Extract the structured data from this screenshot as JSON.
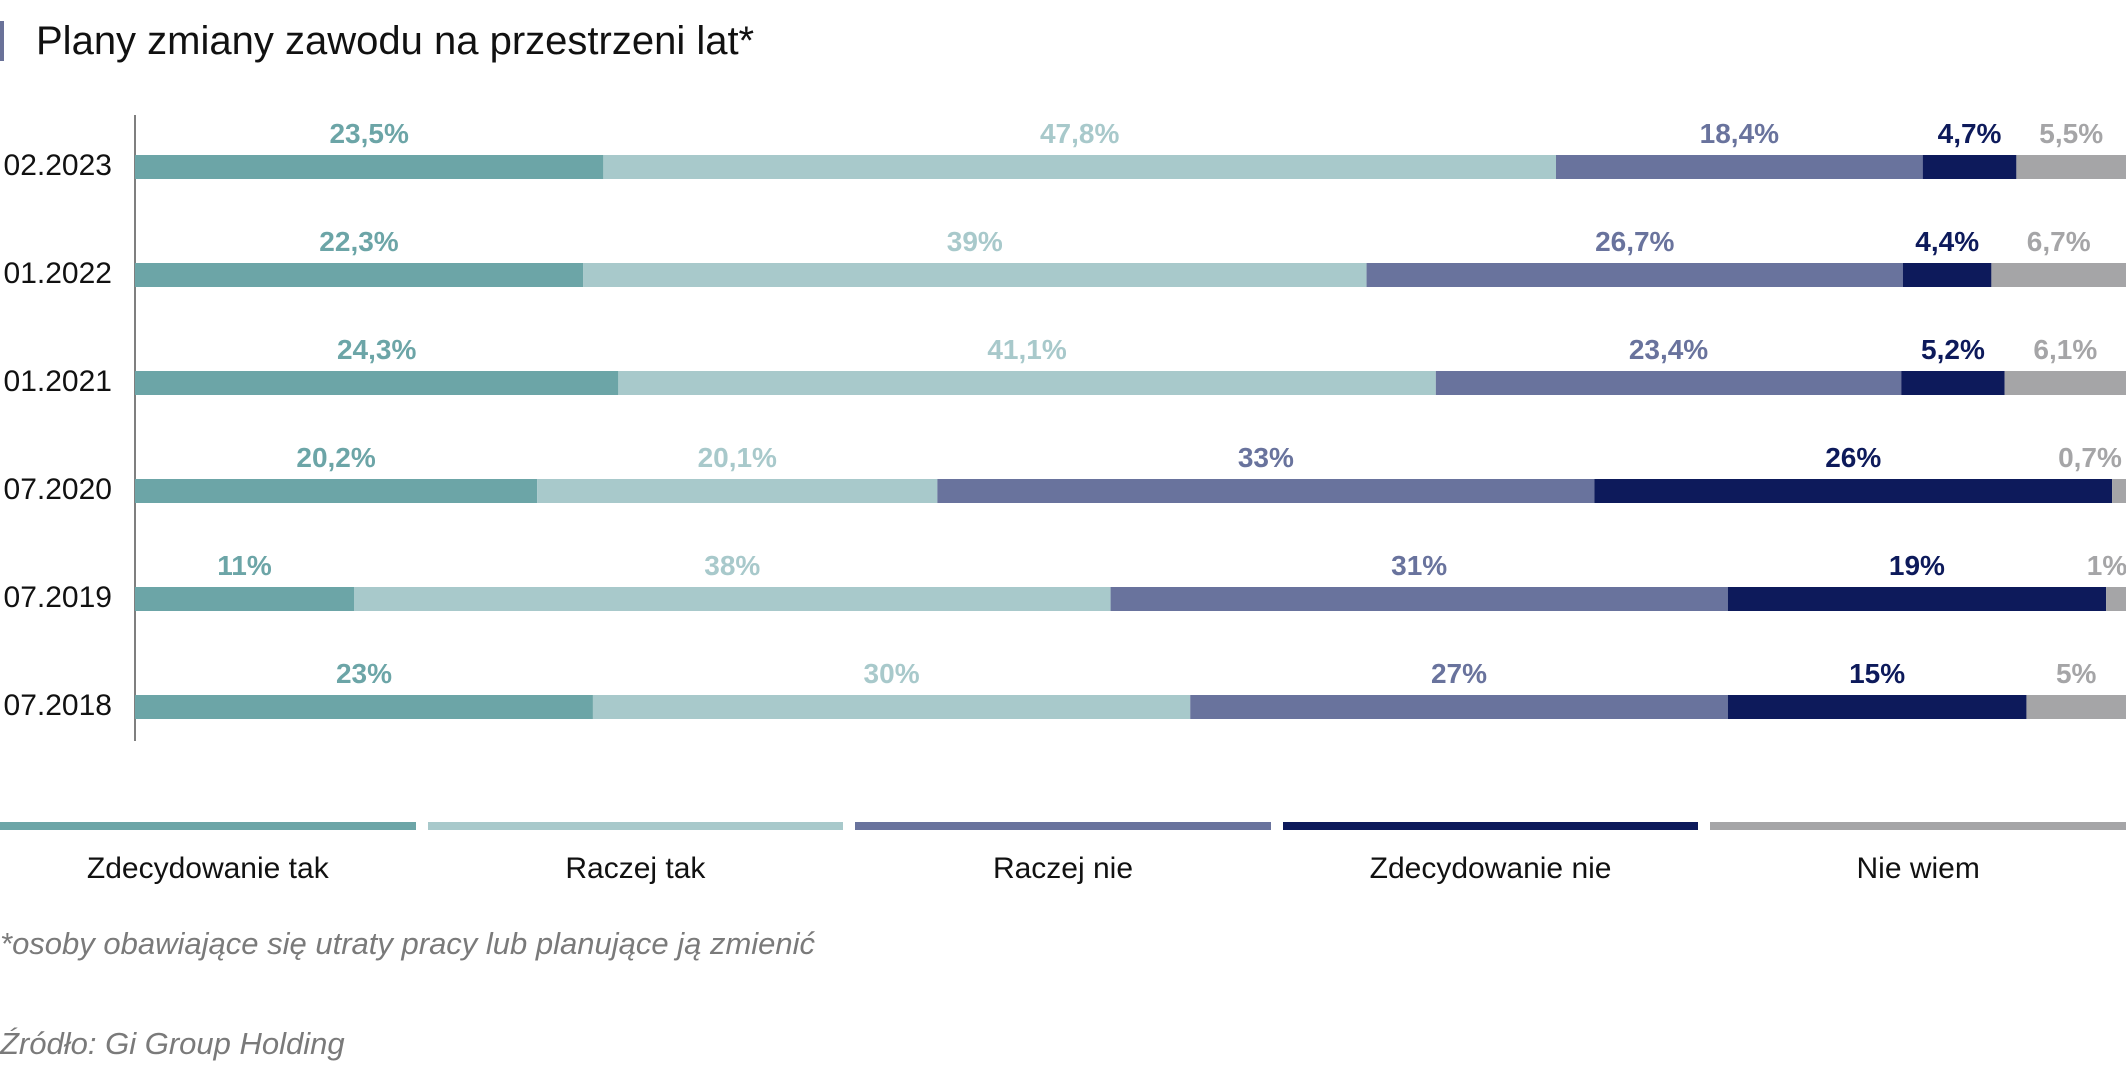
{
  "title": "Plany zmiany zawodu na przestrzeni lat*",
  "footnote": "*osoby obawiające się utraty pracy lub planujące ją zmienić",
  "source": "Źródło: Gi Group Holding",
  "colors": {
    "accent": "#6a7299",
    "Zdecydowanie tak": "#6ca5a7",
    "Raczej tak": "#a8c9cb",
    "Raczej nie": "#69739d",
    "Zdecydowanie nie": "#0d1a5b",
    "Nie wiem": "#a5a5a7"
  },
  "chart_data": {
    "type": "bar",
    "orientation": "horizontal",
    "stacked": true,
    "title": "Plany zmiany zawodu na przestrzeni lat*",
    "categories": [
      "02.2023",
      "01.2022",
      "01.2021",
      "07.2020",
      "07.2019",
      "07.2018"
    ],
    "series": [
      {
        "name": "Zdecydowanie tak",
        "values": [
          23.5,
          22.3,
          24.3,
          20.2,
          11,
          23
        ],
        "labels": [
          "23,5%",
          "22,3%",
          "24,3%",
          "20,2%",
          "11%",
          "23%"
        ]
      },
      {
        "name": "Raczej tak",
        "values": [
          47.8,
          39,
          41.1,
          20.1,
          38,
          30
        ],
        "labels": [
          "47,8%",
          "39%",
          "41,1%",
          "20,1%",
          "38%",
          "30%"
        ]
      },
      {
        "name": "Raczej nie",
        "values": [
          18.4,
          26.7,
          23.4,
          33,
          31,
          27
        ],
        "labels": [
          "18,4%",
          "26,7%",
          "23,4%",
          "33%",
          "31%",
          "27%"
        ]
      },
      {
        "name": "Zdecydowanie nie",
        "values": [
          4.7,
          4.4,
          5.2,
          26,
          19,
          15
        ],
        "labels": [
          "4,7%",
          "4,4%",
          "5,2%",
          "26%",
          "19%",
          "15%"
        ]
      },
      {
        "name": "Nie wiem",
        "values": [
          5.5,
          6.7,
          6.1,
          0.7,
          1,
          5
        ],
        "labels": [
          "5,5%",
          "6,7%",
          "6,1%",
          "0,7%",
          "1%",
          "5%"
        ]
      }
    ],
    "legend_position": "bottom",
    "grid": false
  }
}
